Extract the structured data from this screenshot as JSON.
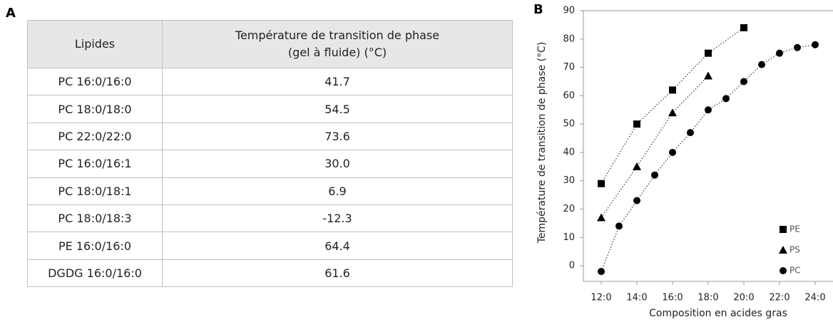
{
  "panels": [
    "A",
    "B"
  ],
  "table": {
    "header": [
      "Lipides",
      [
        "Température de transition de phase",
        "(gel à fluide) (°C)"
      ]
    ],
    "rows": [
      [
        "PC 16:0/16:0",
        "41.7"
      ],
      [
        "PC 18:0/18:0",
        "54.5"
      ],
      [
        "PC 22:0/22:0",
        "73.6"
      ],
      [
        "PC 16:0/16:1",
        "30.0"
      ],
      [
        "PC 18:0/18:1",
        "6.9"
      ],
      [
        "PC 18:0/18:3",
        "-12.3"
      ],
      [
        "PE 16:0/16:0",
        "64.4"
      ],
      [
        "DGDG 16:0/16:0",
        "61.6"
      ]
    ]
  },
  "chart_data": {
    "type": "scatter",
    "x_label": "Composition en acides gras",
    "y_label": "Température de transition de phase (°C)",
    "xlim": [
      11,
      25
    ],
    "xticks": [
      {
        "value": 12,
        "label": "12:0"
      },
      {
        "value": 14,
        "label": "14:0"
      },
      {
        "value": 16,
        "label": "16:0"
      },
      {
        "value": 18,
        "label": "18:0"
      },
      {
        "value": 20,
        "label": "20:0"
      },
      {
        "value": 22,
        "label": "22:0"
      },
      {
        "value": 24,
        "label": "24:0"
      }
    ],
    "ylim": [
      -5.5,
      90
    ],
    "yticks": [
      0,
      10,
      20,
      30,
      40,
      50,
      60,
      70,
      80,
      90
    ],
    "legend": "lower right",
    "series": [
      {
        "name": "PE",
        "color": "#000000",
        "marker": "square",
        "x": [
          12,
          14,
          16,
          18,
          20
        ],
        "values": [
          29,
          50,
          62,
          75,
          84
        ]
      },
      {
        "name": "PS",
        "color": "#000000",
        "marker": "triangle",
        "x": [
          12,
          14,
          16,
          18
        ],
        "values": [
          17,
          35,
          54,
          67
        ]
      },
      {
        "name": "PC",
        "color": "#000000",
        "marker": "circle",
        "x": [
          12,
          13,
          14,
          15,
          16,
          17,
          18,
          19,
          20,
          21,
          22,
          23,
          24
        ],
        "values": [
          -2,
          14,
          23,
          32,
          40,
          47,
          55,
          59,
          65,
          71,
          75,
          77,
          78
        ]
      }
    ]
  }
}
